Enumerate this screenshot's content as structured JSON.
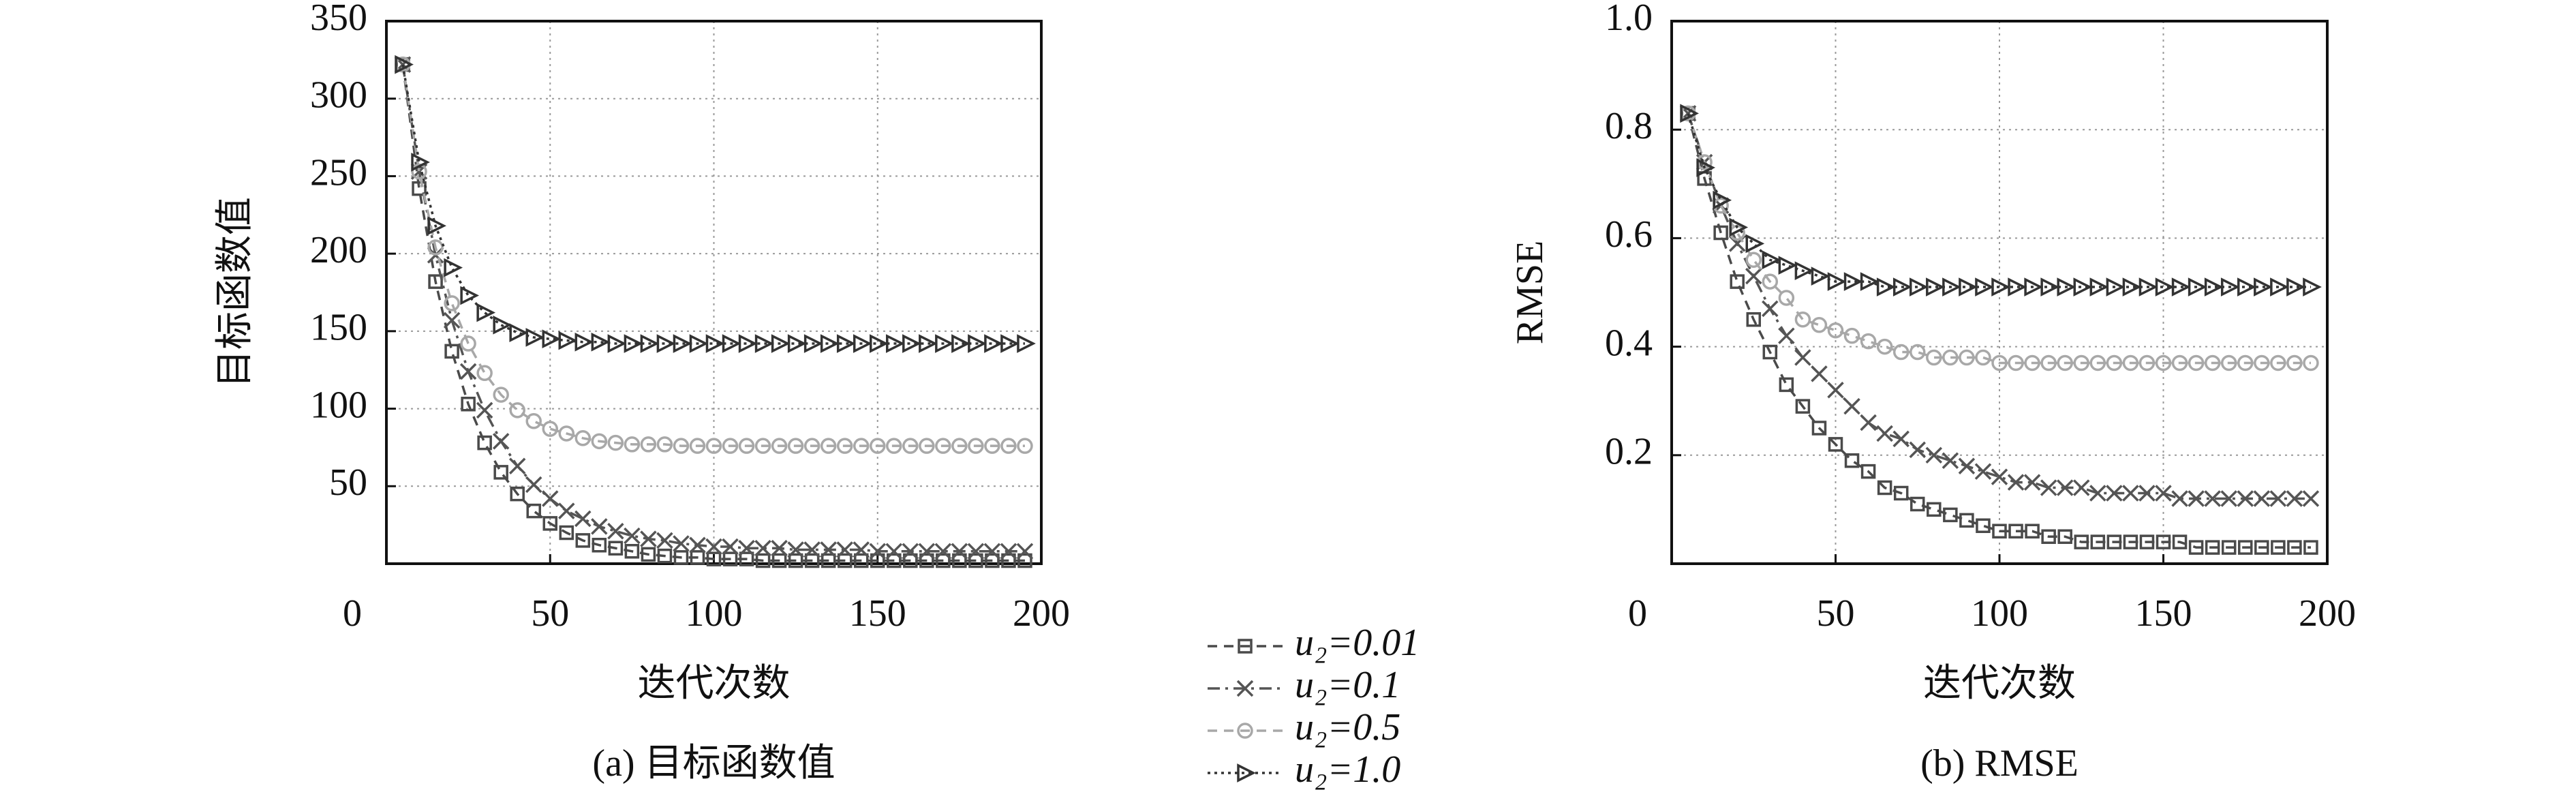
{
  "chart_data": [
    {
      "type": "line",
      "caption": "(a) 目标函数值",
      "xlabel": "迭代次数",
      "ylabel": "目标函数值",
      "x": [
        5,
        10,
        15,
        20,
        25,
        30,
        35,
        40,
        45,
        50,
        55,
        60,
        65,
        70,
        75,
        80,
        85,
        90,
        95,
        100,
        105,
        110,
        115,
        120,
        125,
        130,
        135,
        140,
        145,
        150,
        155,
        160,
        165,
        170,
        175,
        180,
        185,
        190,
        195
      ],
      "xlim": [
        0,
        200
      ],
      "xticks": [
        0,
        50,
        100,
        150,
        200
      ],
      "ylim": [
        0,
        350
      ],
      "yticks": [
        50,
        100,
        150,
        200,
        250,
        300,
        350
      ],
      "grid": true,
      "legend": true,
      "series": [
        {
          "name": "u₂=0.01",
          "color": "#4a4a4a",
          "marker": "square",
          "values": [
            322,
            242,
            182,
            137,
            103,
            78,
            59,
            45,
            34,
            26,
            20,
            15,
            12,
            10,
            8,
            6,
            5,
            4,
            4,
            3,
            3,
            3,
            2,
            2,
            2,
            2,
            2,
            2,
            2,
            2,
            2,
            2,
            2,
            2,
            2,
            2,
            2,
            2,
            2
          ]
        },
        {
          "name": "u₂=0.1",
          "color": "#555555",
          "marker": "x",
          "values": [
            322,
            253,
            199,
            157,
            124,
            99,
            79,
            63,
            51,
            42,
            34,
            29,
            24,
            21,
            18,
            16,
            15,
            13,
            12,
            11,
            11,
            10,
            10,
            10,
            9,
            9,
            9,
            9,
            9,
            8,
            8,
            8,
            8,
            8,
            8,
            8,
            8,
            8,
            8
          ]
        },
        {
          "name": "u₂=0.5",
          "color": "#a8a8a8",
          "marker": "circle",
          "values": [
            322,
            253,
            204,
            168,
            142,
            123,
            109,
            99,
            92,
            87,
            84,
            81,
            79,
            78,
            77,
            77,
            77,
            76,
            76,
            76,
            76,
            76,
            76,
            76,
            76,
            76,
            76,
            76,
            76,
            76,
            76,
            76,
            76,
            76,
            76,
            76,
            76,
            76,
            76
          ]
        },
        {
          "name": "u₂=1.0",
          "color": "#333333",
          "marker": "triangle",
          "values": [
            322,
            259,
            218,
            191,
            173,
            162,
            154,
            149,
            146,
            145,
            144,
            143,
            143,
            142,
            142,
            142,
            142,
            142,
            142,
            142,
            142,
            142,
            142,
            142,
            142,
            142,
            142,
            142,
            142,
            142,
            142,
            142,
            142,
            142,
            142,
            142,
            142,
            142,
            142
          ]
        }
      ]
    },
    {
      "type": "line",
      "caption": "(b) RMSE",
      "xlabel": "迭代次数",
      "ylabel": "RMSE",
      "x": [
        5,
        10,
        15,
        20,
        25,
        30,
        35,
        40,
        45,
        50,
        55,
        60,
        65,
        70,
        75,
        80,
        85,
        90,
        95,
        100,
        105,
        110,
        115,
        120,
        125,
        130,
        135,
        140,
        145,
        150,
        155,
        160,
        165,
        170,
        175,
        180,
        185,
        190,
        195
      ],
      "xlim": [
        0,
        200
      ],
      "xticks": [
        0,
        50,
        100,
        150,
        200
      ],
      "ylim": [
        0,
        1.0
      ],
      "yticks": [
        0.2,
        0.4,
        0.6,
        0.8,
        {
          "value": 1.0,
          "label": "1.0"
        }
      ],
      "grid": true,
      "legend": false,
      "series": [
        {
          "color": "#4a4a4a",
          "marker": "square",
          "values": [
            0.83,
            0.71,
            0.61,
            0.52,
            0.45,
            0.39,
            0.33,
            0.29,
            0.25,
            0.22,
            0.19,
            0.17,
            0.14,
            0.13,
            0.11,
            0.1,
            0.09,
            0.08,
            0.07,
            0.06,
            0.06,
            0.06,
            0.05,
            0.05,
            0.04,
            0.04,
            0.04,
            0.04,
            0.04,
            0.04,
            0.04,
            0.03,
            0.03,
            0.03,
            0.03,
            0.03,
            0.03,
            0.03,
            0.03
          ]
        },
        {
          "color": "#555555",
          "marker": "x",
          "values": [
            0.83,
            0.74,
            0.66,
            0.59,
            0.53,
            0.47,
            0.42,
            0.38,
            0.35,
            0.32,
            0.29,
            0.26,
            0.24,
            0.23,
            0.21,
            0.2,
            0.19,
            0.18,
            0.17,
            0.16,
            0.15,
            0.15,
            0.14,
            0.14,
            0.14,
            0.13,
            0.13,
            0.13,
            0.13,
            0.13,
            0.12,
            0.12,
            0.12,
            0.12,
            0.12,
            0.12,
            0.12,
            0.12,
            0.12
          ]
        },
        {
          "color": "#a8a8a8",
          "marker": "circle",
          "values": [
            0.83,
            0.74,
            0.66,
            0.61,
            0.56,
            0.52,
            0.49,
            0.45,
            0.44,
            0.43,
            0.42,
            0.41,
            0.4,
            0.39,
            0.39,
            0.38,
            0.38,
            0.38,
            0.38,
            0.37,
            0.37,
            0.37,
            0.37,
            0.37,
            0.37,
            0.37,
            0.37,
            0.37,
            0.37,
            0.37,
            0.37,
            0.37,
            0.37,
            0.37,
            0.37,
            0.37,
            0.37,
            0.37,
            0.37
          ]
        },
        {
          "color": "#333333",
          "marker": "triangle",
          "values": [
            0.83,
            0.73,
            0.67,
            0.62,
            0.59,
            0.56,
            0.55,
            0.54,
            0.53,
            0.52,
            0.52,
            0.52,
            0.51,
            0.51,
            0.51,
            0.51,
            0.51,
            0.51,
            0.51,
            0.51,
            0.51,
            0.51,
            0.51,
            0.51,
            0.51,
            0.51,
            0.51,
            0.51,
            0.51,
            0.51,
            0.51,
            0.51,
            0.51,
            0.51,
            0.51,
            0.51,
            0.51,
            0.51,
            0.51
          ]
        }
      ]
    }
  ]
}
